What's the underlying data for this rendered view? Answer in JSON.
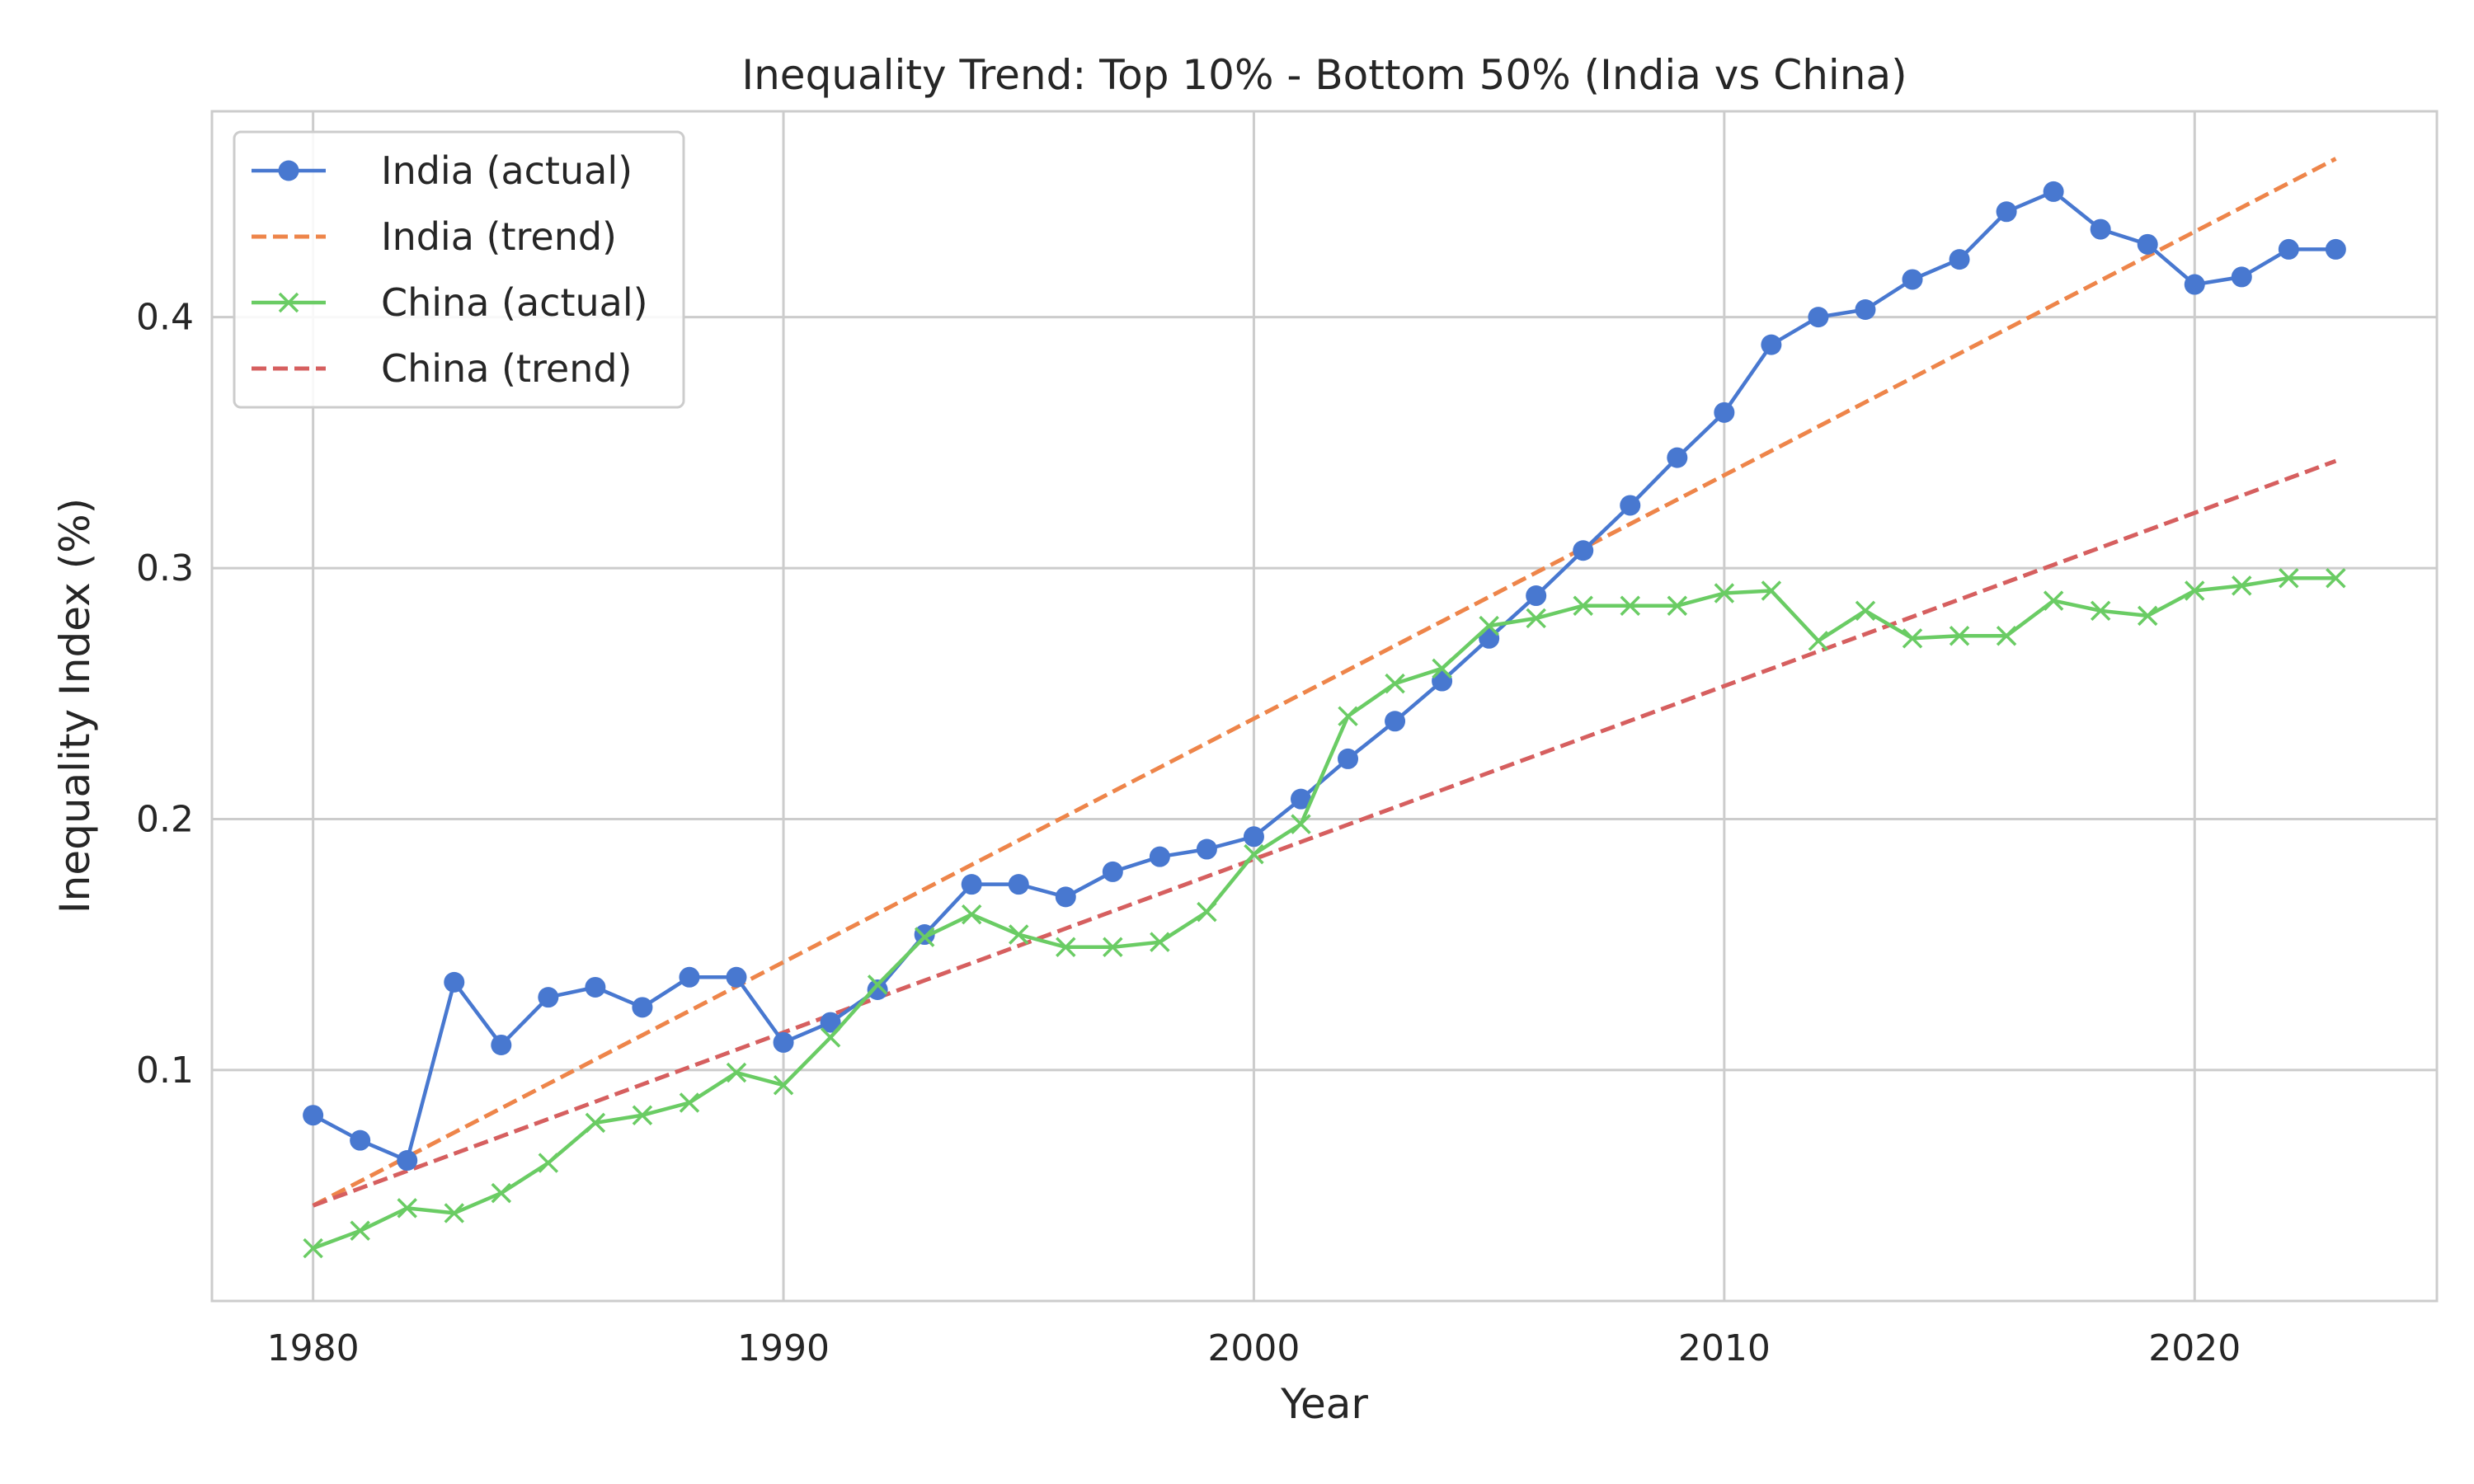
{
  "chart_data": {
    "type": "line",
    "title": "Inequality Trend: Top 10% - Bottom 50% (India vs China)",
    "xlabel": "Year",
    "ylabel": "Inequality Index (%)",
    "xlim": [
      1977.85,
      2025.15
    ],
    "ylim": [
      0.008,
      0.482
    ],
    "xticks": [
      1980,
      1990,
      2000,
      2010,
      2020
    ],
    "yticks": [
      0.1,
      0.2,
      0.3,
      0.4
    ],
    "ytick_labels": [
      "0.1",
      "0.2",
      "0.3",
      "0.4"
    ],
    "grid": true,
    "legend_position": "top-left",
    "x": [
      1980,
      1981,
      1982,
      1983,
      1984,
      1985,
      1986,
      1987,
      1988,
      1989,
      1990,
      1991,
      1992,
      1993,
      1994,
      1995,
      1996,
      1997,
      1998,
      1999,
      2000,
      2001,
      2002,
      2003,
      2004,
      2005,
      2006,
      2007,
      2008,
      2009,
      2010,
      2011,
      2012,
      2013,
      2014,
      2015,
      2016,
      2017,
      2018,
      2019,
      2020,
      2021,
      2022,
      2023
    ],
    "series": [
      {
        "name": "India (actual)",
        "style": "solid",
        "marker": "circle",
        "color": "#4878d0",
        "values": [
          0.082,
          0.072,
          0.064,
          0.135,
          0.11,
          0.129,
          0.133,
          0.125,
          0.137,
          0.137,
          0.111,
          0.119,
          0.132,
          0.154,
          0.174,
          0.174,
          0.169,
          0.179,
          0.185,
          0.188,
          0.193,
          0.208,
          0.224,
          0.239,
          0.255,
          0.272,
          0.289,
          0.307,
          0.325,
          0.344,
          0.362,
          0.389,
          0.4,
          0.403,
          0.415,
          0.423,
          0.442,
          0.45,
          0.435,
          0.429,
          0.413,
          0.416,
          0.427,
          0.427
        ]
      },
      {
        "name": "India (trend)",
        "style": "dashed",
        "marker": "none",
        "color": "#ee854a",
        "values": [
          0.046,
          0.0557,
          0.0654,
          0.0751,
          0.0848,
          0.0945,
          0.1042,
          0.1139,
          0.1236,
          0.1333,
          0.143,
          0.1527,
          0.1624,
          0.1721,
          0.1818,
          0.1915,
          0.2012,
          0.2109,
          0.2206,
          0.2303,
          0.24,
          0.2497,
          0.2594,
          0.2691,
          0.2788,
          0.2885,
          0.2982,
          0.3079,
          0.3176,
          0.3273,
          0.337,
          0.3467,
          0.3564,
          0.3661,
          0.3758,
          0.3855,
          0.3952,
          0.4049,
          0.4146,
          0.4243,
          0.434,
          0.4437,
          0.4534,
          0.4631
        ]
      },
      {
        "name": "China (actual)",
        "style": "solid",
        "marker": "x",
        "color": "#6acc64",
        "values": [
          0.029,
          0.036,
          0.045,
          0.043,
          0.051,
          0.063,
          0.079,
          0.082,
          0.087,
          0.099,
          0.094,
          0.113,
          0.134,
          0.153,
          0.162,
          0.154,
          0.149,
          0.149,
          0.151,
          0.163,
          0.186,
          0.198,
          0.241,
          0.254,
          0.26,
          0.277,
          0.28,
          0.285,
          0.285,
          0.285,
          0.29,
          0.291,
          0.271,
          0.283,
          0.272,
          0.273,
          0.273,
          0.287,
          0.283,
          0.281,
          0.291,
          0.293,
          0.296,
          0.296
        ]
      },
      {
        "name": "China (trend)",
        "style": "dashed",
        "marker": "none",
        "color": "#d65f5f",
        "values": [
          0.046,
          0.0529,
          0.0598,
          0.0667,
          0.0736,
          0.0805,
          0.0874,
          0.0943,
          0.1012,
          0.1081,
          0.115,
          0.1219,
          0.1288,
          0.1357,
          0.1426,
          0.1495,
          0.1564,
          0.1633,
          0.1702,
          0.1771,
          0.184,
          0.1909,
          0.1978,
          0.2047,
          0.2116,
          0.2185,
          0.2254,
          0.2323,
          0.2392,
          0.2461,
          0.253,
          0.2599,
          0.2668,
          0.2737,
          0.2806,
          0.2875,
          0.2944,
          0.3013,
          0.3082,
          0.3151,
          0.322,
          0.3289,
          0.3358,
          0.3427
        ]
      }
    ]
  }
}
